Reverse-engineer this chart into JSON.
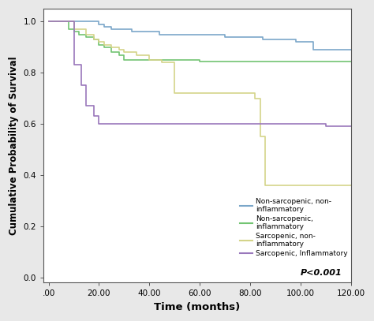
{
  "title": "",
  "xlabel": "Time (months)",
  "ylabel": "Cumulative Probability of Survival",
  "xlim": [
    -2,
    120
  ],
  "ylim": [
    -0.02,
    1.05
  ],
  "xticks": [
    0,
    20,
    40,
    60,
    80,
    100,
    120
  ],
  "yticks": [
    0.0,
    0.2,
    0.4,
    0.6,
    0.8,
    1.0
  ],
  "xtick_labels": [
    ".00",
    "20.00",
    "40.00",
    "60.00",
    "80.00",
    "100.00",
    "120.00"
  ],
  "ytick_labels": [
    "0.0",
    "0.2",
    "0.4",
    "0.6",
    "0.8",
    "1.0"
  ],
  "background_color": "#e8e8e8",
  "plot_background": "#ffffff",
  "pvalue_text": "P<0.001",
  "legend_labels": [
    "Non-sarcopenic, non-\ninflammatory",
    "Non-sarcopenic,\ninflammatory",
    "Sarcopenic, non-\ninflammatory",
    "Sarcopenic, Inflammatory"
  ],
  "curve_keys": [
    "non_sarc_non_inflam",
    "non_sarc_inflam",
    "sarc_non_inflam",
    "sarc_inflam"
  ],
  "curves": {
    "non_sarc_non_inflam": {
      "color": "#7ba7c9",
      "times": [
        0,
        5,
        10,
        15,
        18,
        20,
        22,
        25,
        28,
        30,
        33,
        36,
        40,
        44,
        48,
        55,
        60,
        65,
        70,
        75,
        80,
        85,
        90,
        95,
        98,
        100,
        105,
        110,
        115,
        120
      ],
      "survival": [
        1.0,
        1.0,
        1.0,
        1.0,
        1.0,
        0.99,
        0.98,
        0.97,
        0.97,
        0.97,
        0.96,
        0.96,
        0.96,
        0.95,
        0.95,
        0.95,
        0.95,
        0.95,
        0.94,
        0.94,
        0.94,
        0.93,
        0.93,
        0.93,
        0.92,
        0.92,
        0.89,
        0.89,
        0.89,
        0.89
      ]
    },
    "non_sarc_inflam": {
      "color": "#72c472",
      "times": [
        0,
        5,
        8,
        10,
        12,
        15,
        18,
        20,
        22,
        25,
        28,
        30,
        35,
        40,
        50,
        60,
        70,
        80,
        90,
        100,
        110,
        120
      ],
      "survival": [
        1.0,
        1.0,
        0.97,
        0.96,
        0.95,
        0.94,
        0.93,
        0.91,
        0.9,
        0.88,
        0.87,
        0.85,
        0.85,
        0.85,
        0.85,
        0.845,
        0.845,
        0.845,
        0.845,
        0.845,
        0.845,
        0.845
      ]
    },
    "sarc_non_inflam": {
      "color": "#d4d48a",
      "times": [
        0,
        5,
        10,
        15,
        18,
        20,
        22,
        25,
        28,
        30,
        35,
        40,
        45,
        50,
        55,
        60,
        70,
        80,
        82,
        84,
        86,
        90,
        95,
        100,
        110,
        120
      ],
      "survival": [
        1.0,
        1.0,
        0.97,
        0.95,
        0.93,
        0.92,
        0.91,
        0.9,
        0.89,
        0.88,
        0.87,
        0.85,
        0.84,
        0.72,
        0.72,
        0.72,
        0.72,
        0.72,
        0.7,
        0.55,
        0.36,
        0.36,
        0.36,
        0.36,
        0.36,
        0.36
      ]
    },
    "sarc_inflam": {
      "color": "#9977bb",
      "times": [
        0,
        5,
        10,
        13,
        15,
        18,
        20,
        22,
        25,
        30,
        40,
        50,
        60,
        70,
        80,
        90,
        100,
        110,
        120
      ],
      "survival": [
        1.0,
        1.0,
        0.83,
        0.75,
        0.67,
        0.63,
        0.6,
        0.6,
        0.6,
        0.6,
        0.6,
        0.6,
        0.6,
        0.6,
        0.6,
        0.6,
        0.6,
        0.59,
        0.59
      ]
    }
  }
}
